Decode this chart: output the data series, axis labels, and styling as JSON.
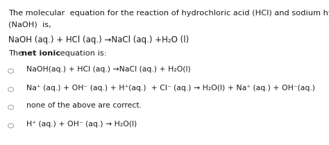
{
  "bg_color": "#ffffff",
  "text_color": "#1a1a1a",
  "line1": "The molecular  equation for the reaction of hydrochloric acid (HCl) and sodium hydroxide",
  "line2": "(NaOH)  is,",
  "molecular_eq": "NaOH (aq.) + HCl (aq.) →NaCl (aq.) +H₂O (l)",
  "net_ionic_plain1": "The ",
  "net_ionic_bold": "net ionic",
  "net_ionic_plain2": " equation is:",
  "option1": "NaOH(aq.) + HCl (aq.) →NaCl (aq.) + H₂O(l)",
  "option2": "Na⁺ (aq.) + OH⁻ (aq.) + H⁺(aq.)  + Cl⁻ (aq.) → H₂O(l) + Na⁺ (aq.) + OH⁻(aq.)",
  "option3": "none of the above are correct.",
  "option4": "H⁺ (aq.) + OH⁻ (aq.) → H₂O(l)",
  "line_color": "#cccccc",
  "circle_color": "#999999",
  "font_size_body": 8.2,
  "font_size_eq": 8.5,
  "font_size_opt": 7.8
}
